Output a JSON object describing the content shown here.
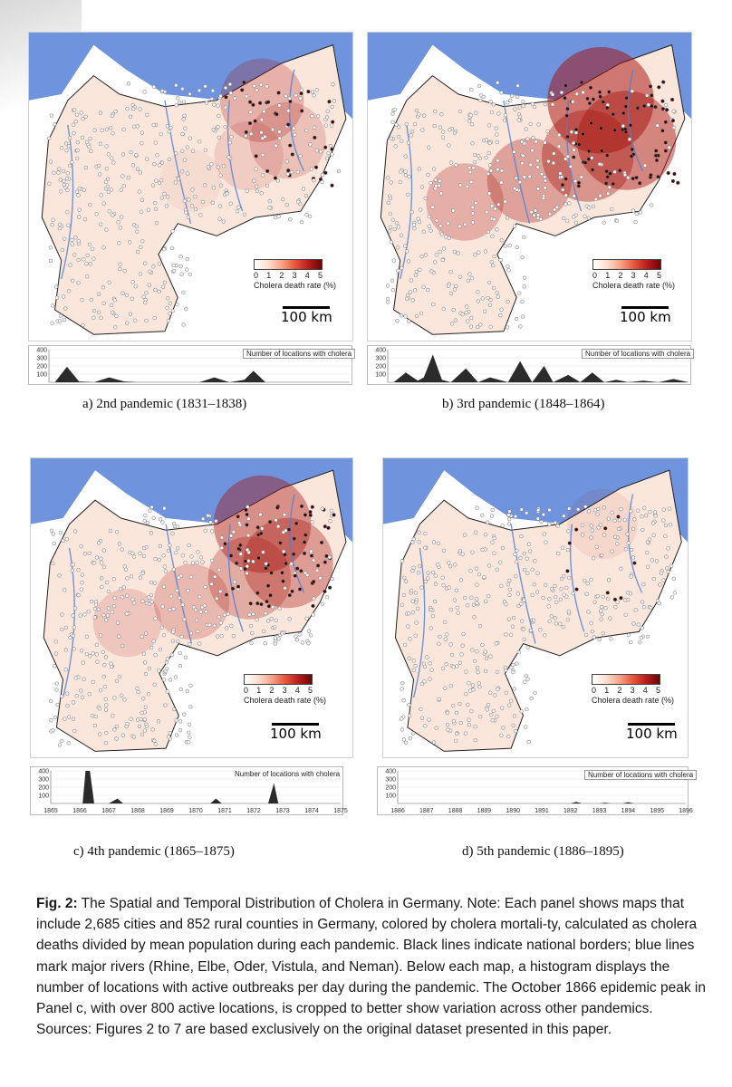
{
  "legend": {
    "ticks": [
      "0",
      "1",
      "2",
      "3",
      "4",
      "5"
    ],
    "title": "Cholera death rate (%)"
  },
  "scale_label": "100 km",
  "hist_title": "Number of locations with cholera",
  "hist_yticks": [
    "400",
    "300",
    "200",
    "100"
  ],
  "colors": {
    "sea": "#6f93dc",
    "land": "#fbe6dc",
    "river": "#4f7ed8",
    "border": "#222222",
    "hot": "#a51410"
  },
  "panels": [
    {
      "caption": "a) 2nd pandemic (1831–1838)",
      "intensity": 0.45,
      "xlabels": []
    },
    {
      "caption": "b) 3rd pandemic (1848–1864)",
      "intensity": 0.95,
      "xlabels": []
    },
    {
      "caption": "c) 4th pandemic (1865–1875)",
      "intensity": 0.75,
      "xlabels": [
        "1865",
        "1866",
        "1867",
        "1868",
        "1869",
        "1870",
        "1871",
        "1872",
        "1873",
        "1874",
        "1875"
      ]
    },
    {
      "caption": "d) 5th pandemic (1886–1895)",
      "intensity": 0.15,
      "xlabels": [
        "1886",
        "1887",
        "1888",
        "1889",
        "1890",
        "1891",
        "1892",
        "1893",
        "1894",
        "1895",
        "1896"
      ]
    }
  ],
  "chart_data": [
    {
      "type": "area",
      "panel": "a",
      "ylim": [
        0,
        400
      ],
      "yticks": [
        100,
        200,
        300,
        400
      ],
      "x": [
        0.02,
        0.06,
        0.1,
        0.15,
        0.2,
        0.25,
        0.3,
        0.5,
        0.55,
        0.6,
        0.65,
        0.68,
        0.72,
        1.0
      ],
      "values": [
        0,
        190,
        10,
        0,
        60,
        10,
        0,
        0,
        60,
        0,
        30,
        140,
        0,
        0
      ]
    },
    {
      "type": "area",
      "panel": "b",
      "ylim": [
        0,
        400
      ],
      "yticks": [
        100,
        200,
        300,
        400
      ],
      "x": [
        0.02,
        0.06,
        0.1,
        0.12,
        0.15,
        0.18,
        0.21,
        0.26,
        0.3,
        0.34,
        0.4,
        0.44,
        0.48,
        0.52,
        0.55,
        0.6,
        0.64,
        0.68,
        0.72,
        0.76,
        0.8,
        0.85,
        0.9,
        0.95,
        1.0
      ],
      "values": [
        0,
        120,
        20,
        60,
        340,
        30,
        0,
        170,
        0,
        60,
        0,
        260,
        0,
        200,
        0,
        90,
        0,
        120,
        0,
        30,
        0,
        20,
        0,
        40,
        0
      ]
    },
    {
      "type": "area",
      "panel": "c",
      "ylim": [
        0,
        400
      ],
      "yticks": [
        100,
        200,
        300,
        400
      ],
      "x": [
        0.04,
        0.11,
        0.12,
        0.135,
        0.15,
        0.2,
        0.23,
        0.25,
        0.55,
        0.57,
        0.59,
        0.75,
        0.77,
        0.785,
        0.8,
        1.0
      ],
      "values": [
        0,
        0,
        400,
        400,
        0,
        0,
        60,
        0,
        0,
        60,
        0,
        0,
        250,
        0,
        0,
        0
      ]
    },
    {
      "type": "area",
      "panel": "d",
      "ylim": [
        0,
        400
      ],
      "yticks": [
        100,
        200,
        300,
        400
      ],
      "x": [
        0.0,
        0.6,
        0.62,
        0.64,
        0.7,
        0.72,
        0.74,
        0.78,
        0.8,
        0.82,
        1.0
      ],
      "values": [
        0,
        0,
        20,
        0,
        0,
        10,
        0,
        0,
        15,
        0,
        0
      ]
    }
  ],
  "figure_caption": {
    "label": "Fig. 2:",
    "text": " The Spatial and Temporal Distribution of Cholera in Germany. Note: Each panel shows maps that include 2,685 cities and 852 rural counties in Germany, colored by cholera mortali-ty, calculated as cholera deaths divided by mean population during each pandemic. Black lines indicate national borders; blue lines mark major rivers (Rhine, Elbe, Oder, Vistula, and Neman). Below each map, a histogram displays the number of locations with active outbreaks per day during the pandemic. The October 1866 epidemic peak in Panel c, with over 800 active locations, is cropped to better show variation across other pandemics. Sources: Figures 2 to 7 are based exclusively on the original dataset presented in this paper."
  }
}
